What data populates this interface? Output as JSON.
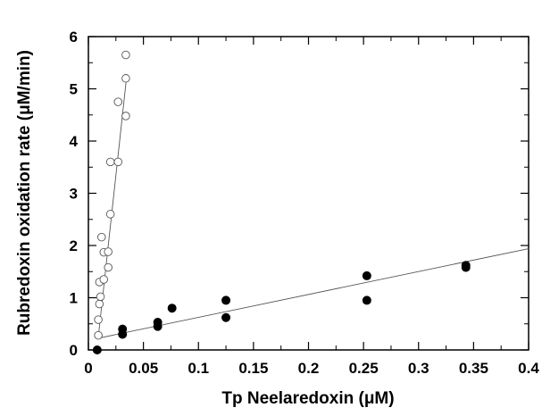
{
  "chart_data": {
    "type": "scatter",
    "xlabel": "Tp Neelaredoxin (μM)",
    "ylabel": "Rubredoxin oxidation rate (μM/min)",
    "xlim": [
      0,
      0.4
    ],
    "ylim": [
      0,
      6
    ],
    "x_ticks": [
      "0",
      "0.05",
      "0.1",
      "0.15",
      "0.2",
      "0.25",
      "0.3",
      "0.35",
      "0.4"
    ],
    "y_ticks": [
      "0",
      "1",
      "2",
      "3",
      "4",
      "5",
      "6"
    ],
    "grid": false,
    "series": [
      {
        "marker": "open-circle",
        "points": [
          [
            0.009,
            0.28
          ],
          [
            0.009,
            0.58
          ],
          [
            0.01,
            0.88
          ],
          [
            0.011,
            1.02
          ],
          [
            0.01,
            1.3
          ],
          [
            0.014,
            1.35
          ],
          [
            0.012,
            2.16
          ],
          [
            0.014,
            1.87
          ],
          [
            0.018,
            1.88
          ],
          [
            0.018,
            1.58
          ],
          [
            0.02,
            2.6
          ],
          [
            0.02,
            3.6
          ],
          [
            0.027,
            3.6
          ],
          [
            0.027,
            4.75
          ],
          [
            0.034,
            4.48
          ],
          [
            0.034,
            5.2
          ],
          [
            0.034,
            5.65
          ]
        ],
        "fit_line": {
          "x": [
            0.009,
            0.035
          ],
          "y": [
            0.25,
            5.28
          ]
        }
      },
      {
        "marker": "filled-circle",
        "points": [
          [
            0.008,
            0.0
          ],
          [
            0.031,
            0.3
          ],
          [
            0.031,
            0.4
          ],
          [
            0.063,
            0.45
          ],
          [
            0.063,
            0.53
          ],
          [
            0.076,
            0.8
          ],
          [
            0.125,
            0.62
          ],
          [
            0.125,
            0.95
          ],
          [
            0.253,
            0.95
          ],
          [
            0.253,
            1.42
          ],
          [
            0.343,
            1.58
          ],
          [
            0.343,
            1.62
          ]
        ],
        "fit_line": {
          "x": [
            0.008,
            0.4
          ],
          "y": [
            0.22,
            1.94
          ]
        }
      }
    ]
  }
}
